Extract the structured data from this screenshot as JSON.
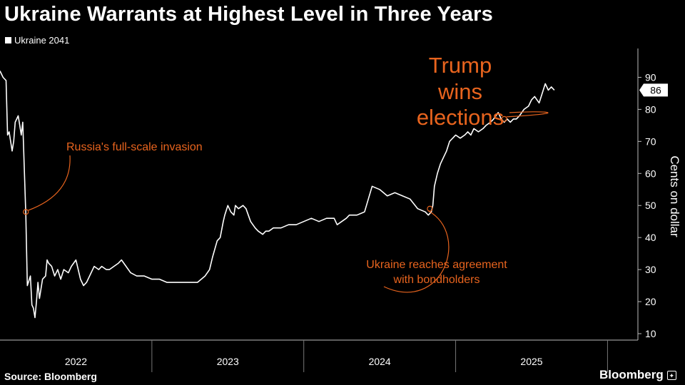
{
  "chart_data": {
    "type": "line",
    "title": "Ukraine Warrants at Highest Level in Three Years",
    "legend": [
      "Ukraine 2041"
    ],
    "legend_position": "top-left",
    "ylabel": "Cents on dollar",
    "xlabel": "",
    "ylim": [
      8,
      99
    ],
    "yticks": [
      10,
      20,
      30,
      40,
      50,
      60,
      70,
      80,
      90
    ],
    "xlim": [
      2021.0,
      2025.2
    ],
    "xtick_labels": [
      "2022",
      "2023",
      "2024",
      "2025"
    ],
    "xtick_positions": [
      2021.5,
      2022.5,
      2023.5,
      2024.5
    ],
    "year_separators": [
      2022.0,
      2023.0,
      2024.0,
      2025.0
    ],
    "last_value_label": "86",
    "series": [
      {
        "name": "Ukraine 2041",
        "x": [
          2021.0,
          2021.02,
          2021.04,
          2021.05,
          2021.06,
          2021.08,
          2021.09,
          2021.1,
          2021.12,
          2021.13,
          2021.14,
          2021.15,
          2021.17,
          2021.18,
          2021.2,
          2021.21,
          2021.22,
          2021.23,
          2021.24,
          2021.25,
          2021.26,
          2021.28,
          2021.3,
          2021.31,
          2021.32,
          2021.34,
          2021.36,
          2021.38,
          2021.4,
          2021.42,
          2021.45,
          2021.47,
          2021.5,
          2021.53,
          2021.55,
          2021.57,
          2021.6,
          2021.62,
          2021.65,
          2021.67,
          2021.7,
          2021.72,
          2021.75,
          2021.78,
          2021.8,
          2021.83,
          2021.86,
          2021.9,
          2021.95,
          2022.0,
          2022.05,
          2022.1,
          2022.15,
          2022.2,
          2022.25,
          2022.3,
          2022.35,
          2022.38,
          2022.4,
          2022.43,
          2022.45,
          2022.47,
          2022.48,
          2022.5,
          2022.52,
          2022.54,
          2022.55,
          2022.57,
          2022.6,
          2022.62,
          2022.65,
          2022.68,
          2022.7,
          2022.73,
          2022.75,
          2022.77,
          2022.8,
          2022.85,
          2022.9,
          2022.95,
          2023.0,
          2023.05,
          2023.1,
          2023.15,
          2023.2,
          2023.22,
          2023.25,
          2023.28,
          2023.3,
          2023.35,
          2023.4,
          2023.45,
          2023.5,
          2023.55,
          2023.6,
          2023.65,
          2023.7,
          2023.75,
          2023.8,
          2023.82,
          2023.84,
          2023.85,
          2023.86,
          2023.88,
          2023.9,
          2023.92,
          2023.94,
          2023.96,
          2024.0,
          2024.03,
          2024.06,
          2024.08,
          2024.1,
          2024.12,
          2024.15,
          2024.18,
          2024.2,
          2024.23,
          2024.25,
          2024.28,
          2024.3,
          2024.32,
          2024.34,
          2024.36,
          2024.38,
          2024.4,
          2024.42,
          2024.45,
          2024.48,
          2024.5,
          2024.52,
          2024.55,
          2024.57,
          2024.59,
          2024.61,
          2024.63,
          2024.65
        ],
        "values": [
          92,
          90,
          89,
          72,
          73,
          67,
          70,
          76,
          78,
          75,
          72,
          76,
          47,
          25,
          28,
          19,
          18,
          15,
          20,
          26,
          21,
          27,
          28,
          33,
          32,
          31,
          28,
          30,
          27,
          30,
          29,
          31,
          33,
          27,
          25,
          26,
          29,
          31,
          30,
          31,
          30,
          30,
          31,
          32,
          33,
          31,
          29,
          28,
          28,
          27,
          27,
          26,
          26,
          26,
          26,
          26,
          28,
          30,
          34,
          39,
          40,
          45,
          47,
          50,
          48,
          47,
          50,
          49,
          50,
          49,
          45,
          43,
          42,
          41,
          42,
          42,
          43,
          43,
          44,
          44,
          45,
          46,
          45,
          46,
          46,
          44,
          45,
          46,
          47,
          47,
          48,
          56,
          55,
          53,
          54,
          53,
          52,
          49,
          48,
          47,
          48,
          50,
          56,
          60,
          63,
          65,
          67,
          70,
          72,
          71,
          72,
          73,
          72,
          74,
          73,
          74,
          75,
          76,
          77,
          79,
          77,
          76,
          77,
          76,
          77,
          77,
          78,
          80,
          81,
          83,
          84,
          82,
          85,
          88,
          86,
          87,
          86
        ]
      }
    ],
    "annotations": [
      {
        "text": "Russia's full-scale invasion",
        "x": 2021.17,
        "y": 48
      },
      {
        "text": [
          "Ukraine reaches agreement",
          "with bondholders"
        ],
        "x": 2023.83,
        "y": 49
      },
      {
        "text": [
          "Trump",
          "wins",
          "elections"
        ],
        "x": 2024.32,
        "y": 77
      }
    ],
    "colors": {
      "background": "#000000",
      "line": "#ffffff",
      "annotation": "#e8641e"
    },
    "source": "Source: Bloomberg",
    "brand": "Bloomberg"
  }
}
